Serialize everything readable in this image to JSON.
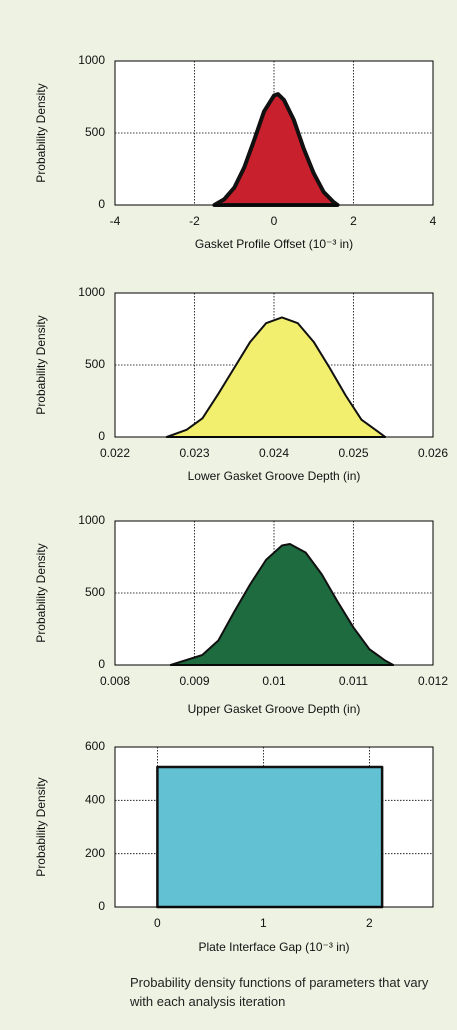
{
  "chart_data": [
    {
      "type": "area",
      "xlabel": "Gasket Profile Offset (10⁻³ in)",
      "ylabel": "Probability Density",
      "x": [
        -1.5,
        -1.25,
        -1,
        -0.75,
        -0.5,
        -0.25,
        0,
        0.1,
        0.25,
        0.5,
        0.75,
        1,
        1.25,
        1.5,
        1.6
      ],
      "values": [
        0,
        40,
        120,
        260,
        450,
        650,
        760,
        770,
        730,
        590,
        390,
        220,
        90,
        20,
        0
      ],
      "color": "#c8202c",
      "xlim": [
        -4,
        4
      ],
      "xticks": [
        -4,
        -2,
        0,
        2,
        4
      ],
      "ylim": [
        0,
        1000
      ],
      "yticks": [
        0,
        500,
        1000
      ],
      "grid": true
    },
    {
      "type": "area",
      "xlabel": "Lower Gasket Groove Depth (in)",
      "ylabel": "Probability Density",
      "x": [
        0.02265,
        0.0229,
        0.0231,
        0.0233,
        0.0235,
        0.0237,
        0.0239,
        0.0241,
        0.0243,
        0.0245,
        0.0247,
        0.0249,
        0.0251,
        0.0253,
        0.0254
      ],
      "values": [
        0,
        50,
        130,
        300,
        480,
        660,
        790,
        830,
        790,
        660,
        480,
        290,
        120,
        40,
        0
      ],
      "color": "#f2ef6e",
      "xlim": [
        0.022,
        0.026
      ],
      "xticks": [
        0.022,
        0.023,
        0.024,
        0.025,
        0.026
      ],
      "ylim": [
        0,
        1000
      ],
      "yticks": [
        0,
        500,
        1000
      ],
      "grid": true
    },
    {
      "type": "area",
      "xlabel": "Upper Gasket Groove Depth (in)",
      "ylabel": "Probability Density",
      "x": [
        0.0087,
        0.0091,
        0.0093,
        0.0095,
        0.0097,
        0.0099,
        0.0101,
        0.0102,
        0.0104,
        0.0106,
        0.0108,
        0.011,
        0.0112,
        0.0114,
        0.0115
      ],
      "values": [
        0,
        70,
        170,
        370,
        560,
        730,
        830,
        840,
        780,
        630,
        440,
        260,
        110,
        30,
        0
      ],
      "color": "#1e6b40",
      "xlim": [
        0.008,
        0.012
      ],
      "xticks": [
        0.008,
        0.009,
        0.01,
        0.011,
        0.012
      ],
      "ylim": [
        0,
        1000
      ],
      "yticks": [
        0,
        500,
        1000
      ],
      "grid": true
    },
    {
      "type": "area",
      "xlabel": "Plate Interface Gap (10⁻³ in)",
      "ylabel": "Probability Density",
      "x": [
        0,
        0,
        2.12,
        2.12
      ],
      "values": [
        0,
        525,
        525,
        0
      ],
      "color": "#62c2d4",
      "xlim": [
        -0.4,
        2.6
      ],
      "xticks": [
        0,
        1,
        2
      ],
      "ylim": [
        0,
        600
      ],
      "yticks": [
        0,
        200,
        400,
        600
      ],
      "grid": true
    }
  ],
  "caption": "Probability density functions of parameters that vary with each analysis iteration"
}
